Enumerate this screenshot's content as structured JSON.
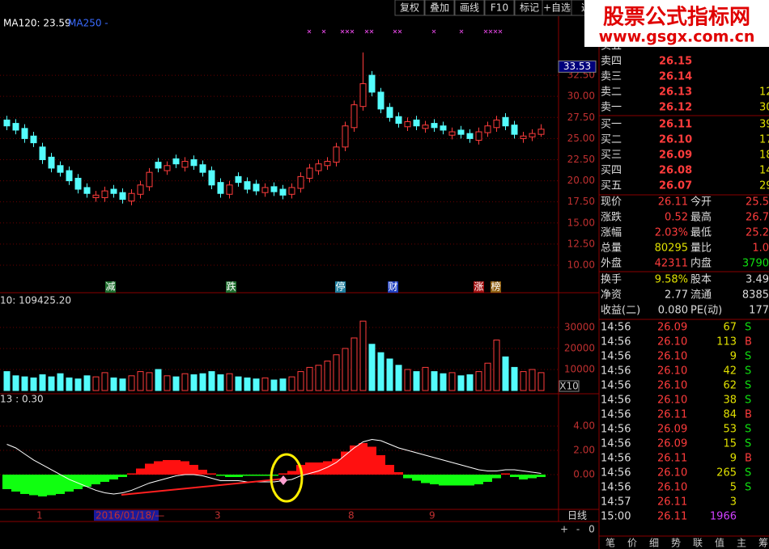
{
  "toolbar": [
    "复权",
    "叠加",
    "画线",
    "F10",
    "标记",
    "+自选",
    "返"
  ],
  "watermark": {
    "title": "股票公式指标网",
    "url": "www.gsgx.com.cn"
  },
  "chart_data": [
    {
      "type": "candlestick",
      "indicators": [
        {
          "text": "MA120: 23.59",
          "color": "#ffffff"
        },
        {
          "text": "MA250 -",
          "color": "#3a6bff"
        }
      ],
      "ylim": [
        8.37,
        39.5
      ],
      "yticks": [
        {
          "value": 10,
          "label": "10.00"
        },
        {
          "value": 12.5,
          "label": "12.50"
        },
        {
          "value": 15,
          "label": "15.00"
        },
        {
          "value": 17.5,
          "label": "17.50"
        },
        {
          "value": 20,
          "label": "20.00"
        },
        {
          "value": 22.5,
          "label": "22.50"
        },
        {
          "value": 25,
          "label": "25.00"
        },
        {
          "value": 27.5,
          "label": "27.50"
        },
        {
          "value": 30,
          "label": "30.00"
        },
        {
          "value": 32.5,
          "label": "32.50"
        }
      ],
      "cursor_label": {
        "value": 33.53,
        "label": "33.53"
      },
      "events": [
        "减",
        "跌",
        "停",
        "财",
        "涨",
        "榜"
      ],
      "open": [
        27.2,
        26.8,
        26.2,
        25.3,
        24.0,
        22.8,
        21.8,
        21.2,
        20.3,
        19.2,
        18.0,
        18.0,
        19.0,
        18.6,
        17.6,
        18.4,
        19.3,
        22.2,
        21.2,
        22.6,
        21.6,
        22.5,
        21.9,
        21.2,
        19.8,
        18.4,
        20.5,
        19.9,
        19.6,
        18.6,
        19.3,
        19.0,
        18.4,
        19.1,
        20.3,
        21.2,
        21.8,
        22.2,
        24.0,
        26.3,
        28.8,
        32.5,
        30.5,
        28.7,
        27.6,
        26.4,
        27.2,
        26.2,
        26.8,
        26.5,
        25.4,
        26.0,
        25.6,
        24.8,
        25.7,
        26.3,
        27.5,
        26.6,
        25.0,
        25.2,
        25.5
      ],
      "close": [
        26.5,
        26.0,
        25.0,
        24.5,
        22.5,
        21.5,
        21.0,
        20.0,
        19.0,
        18.5,
        18.3,
        18.8,
        18.5,
        17.8,
        18.5,
        19.5,
        21.0,
        21.5,
        21.8,
        22.0,
        22.3,
        21.8,
        21.0,
        19.5,
        18.5,
        19.5,
        19.8,
        19.0,
        18.8,
        19.2,
        18.7,
        18.3,
        19.2,
        20.5,
        21.5,
        22.0,
        22.3,
        24.0,
        26.5,
        29.0,
        31.5,
        30.5,
        28.5,
        27.5,
        26.8,
        27.0,
        26.5,
        26.6,
        26.3,
        26.0,
        25.8,
        25.5,
        25.0,
        25.8,
        26.5,
        27.2,
        26.5,
        25.5,
        25.3,
        25.6,
        26.11
      ],
      "high": [
        27.7,
        27.3,
        26.7,
        25.8,
        24.5,
        23.3,
        22.3,
        21.7,
        20.8,
        19.7,
        18.8,
        19.3,
        19.5,
        19.1,
        19.0,
        20.0,
        21.5,
        22.7,
        22.3,
        23.1,
        22.8,
        23.0,
        22.4,
        21.7,
        20.3,
        20.0,
        21.0,
        20.4,
        20.1,
        19.7,
        19.8,
        19.5,
        19.7,
        21.0,
        22.0,
        22.5,
        22.8,
        24.5,
        27.0,
        29.5,
        35.2,
        33.0,
        31.0,
        29.2,
        28.1,
        27.5,
        27.7,
        27.1,
        27.3,
        27.0,
        26.3,
        26.5,
        26.1,
        26.3,
        27.0,
        27.7,
        28.0,
        27.1,
        25.8,
        26.1,
        26.7
      ],
      "low": [
        26.0,
        25.5,
        24.5,
        24.0,
        22.0,
        21.0,
        20.5,
        19.5,
        18.5,
        18.0,
        17.5,
        17.5,
        18.0,
        17.3,
        17.1,
        17.9,
        18.8,
        21.0,
        20.7,
        21.5,
        21.1,
        21.3,
        20.5,
        19.0,
        18.0,
        17.9,
        19.3,
        18.5,
        18.3,
        18.1,
        18.2,
        17.8,
        17.9,
        18.6,
        19.8,
        20.7,
        21.3,
        21.7,
        23.5,
        25.8,
        28.3,
        30.0,
        28.0,
        27.0,
        26.3,
        25.9,
        26.0,
        25.7,
        25.8,
        25.5,
        24.9,
        25.0,
        24.5,
        24.3,
        25.2,
        25.8,
        26.0,
        25.0,
        24.5,
        24.7,
        25.2
      ]
    },
    {
      "type": "bar",
      "header": "10: 109425.20",
      "unit": "X10",
      "ylim": [
        0,
        39600
      ],
      "yticks": [
        10000,
        20000,
        30000
      ],
      "values": [
        9000,
        7000,
        6500,
        6000,
        7500,
        6500,
        8000,
        6000,
        5500,
        7000,
        6500,
        8500,
        6000,
        5500,
        7000,
        9000,
        8500,
        10000,
        7000,
        6500,
        8000,
        7500,
        8000,
        9000,
        7500,
        8000,
        6500,
        6000,
        5500,
        6000,
        5000,
        5500,
        6500,
        9000,
        11000,
        12000,
        14000,
        17000,
        20000,
        25000,
        33000,
        22000,
        18000,
        15000,
        12000,
        10000,
        9000,
        11000,
        9000,
        8000,
        8500,
        7000,
        7500,
        9000,
        13000,
        24000,
        16000,
        11000,
        9000,
        10000,
        8500
      ]
    },
    {
      "type": "bar",
      "header": "13 : 0.30",
      "ylim": [
        -2.87,
        5.8
      ],
      "yticks": [
        {
          "value": 0,
          "label": "0.00"
        },
        {
          "value": 2,
          "label": "2.00"
        },
        {
          "value": 4,
          "label": "4.00"
        }
      ],
      "values": [
        -1.2,
        -1.4,
        -1.6,
        -1.7,
        -1.8,
        -1.7,
        -1.6,
        -1.4,
        -1.2,
        -1.0,
        -0.8,
        -0.6,
        -0.4,
        -0.2,
        0.1,
        0.5,
        0.9,
        1.1,
        1.2,
        1.2,
        1.1,
        0.8,
        0.4,
        0.1,
        -0.1,
        -0.2,
        -0.2,
        -0.1,
        -0.1,
        -0.1,
        -0.1,
        0.1,
        0.3,
        0.8,
        1.0,
        1.0,
        1.1,
        1.3,
        1.9,
        2.4,
        2.6,
        2.3,
        1.6,
        0.8,
        0.2,
        -0.3,
        -0.5,
        -0.7,
        -0.8,
        -0.9,
        -0.9,
        -0.9,
        -0.9,
        -0.8,
        -0.6,
        -0.3,
        0.1,
        -0.2,
        -0.4,
        -0.3,
        -0.2
      ],
      "line": [
        2.5,
        2.2,
        1.7,
        1.2,
        0.8,
        0.4,
        0.0,
        -0.4,
        -0.7,
        -1.0,
        -1.3,
        -1.5,
        -1.6,
        -1.5,
        -1.3,
        -1.0,
        -0.7,
        -0.5,
        -0.3,
        -0.1,
        0.0,
        0.0,
        -0.1,
        -0.3,
        -0.5,
        -0.5,
        -0.5,
        -0.6,
        -0.6,
        -0.6,
        -0.6,
        -0.5,
        -0.4,
        -0.1,
        0.1,
        0.3,
        0.6,
        1.0,
        1.6,
        2.2,
        2.7,
        2.9,
        2.8,
        2.5,
        2.2,
        2.0,
        1.8,
        1.6,
        1.4,
        1.2,
        1.0,
        0.8,
        0.6,
        0.4,
        0.3,
        0.3,
        0.4,
        0.4,
        0.3,
        0.2,
        0.1
      ]
    }
  ],
  "x_axis": {
    "markers": [
      "1",
      "2016/01/18/—",
      "3",
      "8",
      "9"
    ],
    "period": "日线",
    "controls": [
      "+",
      "-",
      "0"
    ]
  },
  "order_book": {
    "sells": [
      [
        "卖五",
        "",
        ""
      ],
      [
        "卖四",
        "26.15",
        ""
      ],
      [
        "卖三",
        "26.14",
        ""
      ],
      [
        "卖二",
        "26.13",
        "12"
      ],
      [
        "卖一",
        "26.12",
        "30"
      ]
    ],
    "buys": [
      [
        "买一",
        "26.11",
        "39"
      ],
      [
        "买二",
        "26.10",
        "17"
      ],
      [
        "买三",
        "26.09",
        "18"
      ],
      [
        "买四",
        "26.08",
        "14"
      ],
      [
        "买五",
        "26.07",
        "29"
      ]
    ]
  },
  "quote": {
    "rows": [
      [
        "现价",
        "26.11",
        "今开",
        "25.5"
      ],
      [
        "涨跌",
        "0.52",
        "最高",
        "26.7"
      ],
      [
        "涨幅",
        "2.03%",
        "最低",
        "25.2"
      ],
      [
        "总量",
        "80295",
        "量比",
        "1.0"
      ],
      [
        "外盘",
        "42311",
        "内盘",
        "3790"
      ],
      [
        "换手",
        "9.58%",
        "股本",
        "3.49"
      ],
      [
        "净资",
        "2.77",
        "流通",
        "8385"
      ],
      [
        "收益(二)",
        "0.080",
        "PE(动)",
        "177"
      ]
    ]
  },
  "ticks": [
    [
      "14:56",
      "26.09",
      "67",
      "S"
    ],
    [
      "14:56",
      "26.10",
      "113",
      "B"
    ],
    [
      "14:56",
      "26.10",
      "9",
      "S"
    ],
    [
      "14:56",
      "26.10",
      "42",
      "S"
    ],
    [
      "14:56",
      "26.10",
      "62",
      "S"
    ],
    [
      "14:56",
      "26.10",
      "38",
      "S"
    ],
    [
      "14:56",
      "26.11",
      "84",
      "B"
    ],
    [
      "14:56",
      "26.09",
      "53",
      "S"
    ],
    [
      "14:56",
      "26.09",
      "15",
      "S"
    ],
    [
      "14:56",
      "26.11",
      "9",
      "B"
    ],
    [
      "14:56",
      "26.10",
      "265",
      "S"
    ],
    [
      "14:56",
      "26.10",
      "5",
      "S"
    ],
    [
      "14:57",
      "26.11",
      "3"
    ],
    [
      "15:00",
      "26.11",
      "1966"
    ]
  ],
  "tabs": [
    "笔",
    "价",
    "细",
    "势",
    "联",
    "值",
    "主",
    "筹"
  ]
}
